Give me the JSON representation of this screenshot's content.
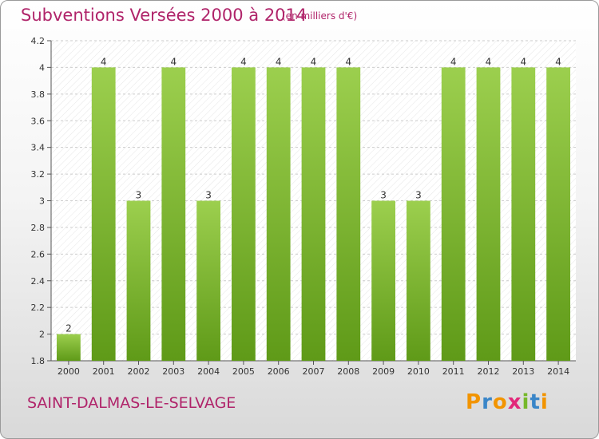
{
  "header": {
    "title": "Subventions Versées 2000 à 2014",
    "unit": "(en milliers d'€)"
  },
  "footer": {
    "commune": "SAINT-DALMAS-LE-SELVAGE",
    "logo_letters": [
      "P",
      "r",
      "o",
      "x",
      "i",
      "t",
      "i"
    ],
    "logo_colors": [
      "#f29400",
      "#3a86c8",
      "#f29400",
      "#e2287a",
      "#76b82a",
      "#3a86c8",
      "#f29400"
    ]
  },
  "colors": {
    "bar_light": "#9ccf4e",
    "bar_dark": "#5f9a18",
    "accent": "#b0246a",
    "grid": "#cccccc"
  },
  "chart_data": {
    "type": "bar",
    "title": "Subventions Versées 2000 à 2014",
    "subtitle": "(en milliers d'€)",
    "xlabel": "",
    "ylabel": "",
    "categories": [
      "2000",
      "2001",
      "2002",
      "2003",
      "2004",
      "2005",
      "2006",
      "2007",
      "2008",
      "2009",
      "2010",
      "2011",
      "2012",
      "2013",
      "2014"
    ],
    "values": [
      2,
      4,
      3,
      4,
      3,
      4,
      4,
      4,
      4,
      3,
      3,
      4,
      4,
      4,
      4
    ],
    "data_labels": [
      "2",
      "4",
      "3",
      "4",
      "3",
      "4",
      "4",
      "4",
      "4",
      "3",
      "3",
      "4",
      "4",
      "4",
      "4"
    ],
    "ylim": [
      1.8,
      4.2
    ],
    "yticks": [
      1.8,
      2,
      2.2,
      2.4,
      2.6,
      2.8,
      3,
      3.2,
      3.4,
      3.6,
      3.8,
      4,
      4.2
    ],
    "ytick_labels": [
      "1.8",
      "2",
      "2.2",
      "2.4",
      "2.6",
      "2.8",
      "3",
      "3.2",
      "3.4",
      "3.6",
      "3.8",
      "4",
      "4.2"
    ],
    "grid": true,
    "legend": "none"
  }
}
